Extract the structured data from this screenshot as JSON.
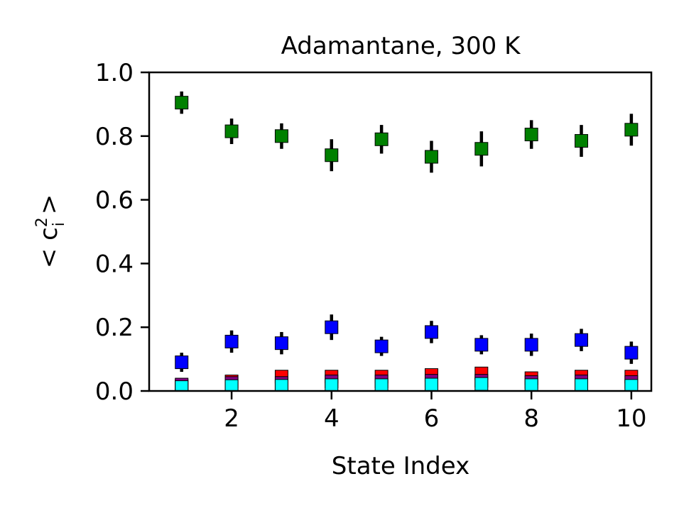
{
  "chart_data": {
    "type": "scatter",
    "title": "Adamantane, 300 K",
    "xlabel": "State Index",
    "ylabel_main": "< c",
    "ylabel_sup": "2",
    "ylabel_sub": "i",
    "ylabel_tail": " >",
    "xlim": [
      0.35,
      10.4
    ],
    "ylim": [
      0.0,
      1.0
    ],
    "xticks": [
      2,
      4,
      6,
      8,
      10
    ],
    "yticks": [
      0.0,
      0.2,
      0.4,
      0.6,
      0.8,
      1.0
    ],
    "xtick_labels": [
      "2",
      "4",
      "6",
      "8",
      "10"
    ],
    "ytick_labels": [
      "0.0",
      "0.2",
      "0.4",
      "0.6",
      "0.8",
      "1.0"
    ],
    "grid": false,
    "legend": "none",
    "marker": "square",
    "series": [
      {
        "color": "#008000",
        "x": [
          1,
          2,
          3,
          4,
          5,
          6,
          7,
          8,
          9,
          10
        ],
        "y": [
          0.905,
          0.815,
          0.8,
          0.74,
          0.79,
          0.735,
          0.76,
          0.805,
          0.785,
          0.82
        ],
        "err": [
          0.035,
          0.04,
          0.04,
          0.05,
          0.045,
          0.05,
          0.055,
          0.045,
          0.05,
          0.05
        ]
      },
      {
        "color": "#0000ff",
        "x": [
          1,
          2,
          3,
          4,
          5,
          6,
          7,
          8,
          9,
          10
        ],
        "y": [
          0.09,
          0.155,
          0.15,
          0.2,
          0.14,
          0.185,
          0.145,
          0.145,
          0.16,
          0.12
        ],
        "err": [
          0.03,
          0.035,
          0.035,
          0.04,
          0.03,
          0.035,
          0.03,
          0.035,
          0.035,
          0.035
        ]
      },
      {
        "color": "#ff0000",
        "x": [
          1,
          2,
          3,
          4,
          5,
          6,
          7,
          8,
          9,
          10
        ],
        "y": [
          0.015,
          0.03,
          0.045,
          0.045,
          0.045,
          0.05,
          0.055,
          0.04,
          0.045,
          0.045
        ],
        "err": [
          0.005,
          0.01,
          0.012,
          0.012,
          0.012,
          0.015,
          0.015,
          0.01,
          0.012,
          0.012
        ]
      },
      {
        "color": "#800080",
        "x": [
          1,
          2,
          3,
          4,
          5,
          6,
          7,
          8,
          9,
          10
        ],
        "y": [
          0.02,
          0.025,
          0.025,
          0.03,
          0.03,
          0.032,
          0.032,
          0.028,
          0.03,
          0.028
        ],
        "err": [
          0.004,
          0.006,
          0.006,
          0.007,
          0.007,
          0.008,
          0.008,
          0.006,
          0.007,
          0.007
        ]
      },
      {
        "color": "#00ffff",
        "x": [
          1,
          2,
          3,
          4,
          5,
          6,
          7,
          8,
          9,
          10
        ],
        "y": [
          0.012,
          0.015,
          0.016,
          0.018,
          0.018,
          0.02,
          0.022,
          0.018,
          0.018,
          0.016
        ],
        "err": [
          0.004,
          0.005,
          0.005,
          0.006,
          0.006,
          0.006,
          0.007,
          0.005,
          0.006,
          0.005
        ]
      }
    ]
  }
}
